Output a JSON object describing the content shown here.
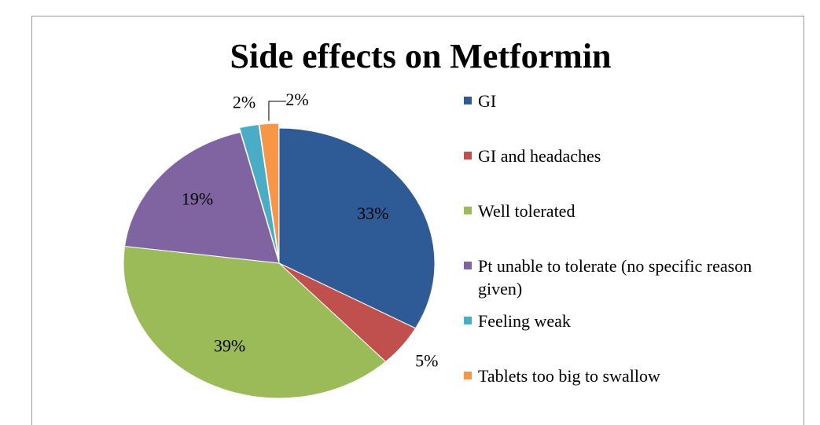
{
  "chart_data": {
    "type": "pie",
    "title": "Side effects on Metformin",
    "categories": [
      "GI",
      "GI and headaches",
      "Well tolerated",
      "Pt unable to tolerate (no specific reason given)",
      "Feeling weak",
      "Tablets too big to swallow"
    ],
    "values": [
      33,
      5,
      39,
      19,
      2,
      2
    ],
    "value_labels": [
      "33%",
      "5%",
      "39%",
      "19%",
      "2%",
      "2%"
    ],
    "colors": [
      "#2e5b95",
      "#c0504d",
      "#9bbb59",
      "#8064a2",
      "#4bacc6",
      "#f79646"
    ],
    "legend": "right"
  }
}
